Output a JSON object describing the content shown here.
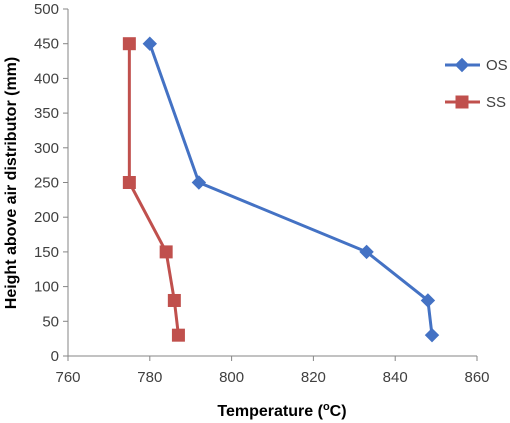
{
  "chart_data": {
    "type": "line",
    "title": "",
    "xlabel": "Temperature (",
    "xlabel_sup": "o",
    "xlabel_tail": "C)",
    "ylabel": "Height above air distributor (mm)",
    "xlim": [
      760,
      860
    ],
    "ylim": [
      0,
      500
    ],
    "x_ticks": [
      "760",
      "780",
      "800",
      "820",
      "840",
      "860"
    ],
    "y_ticks": [
      "0",
      "50",
      "100",
      "150",
      "200",
      "250",
      "300",
      "350",
      "400",
      "450",
      "500"
    ],
    "grid": false,
    "legend_position": "right",
    "series": [
      {
        "name": "OS",
        "color": "#4472C4",
        "marker": "diamond",
        "points": [
          {
            "x": 849,
            "y": 30
          },
          {
            "x": 848,
            "y": 80
          },
          {
            "x": 833,
            "y": 150
          },
          {
            "x": 792,
            "y": 250
          },
          {
            "x": 780,
            "y": 450
          }
        ]
      },
      {
        "name": "SS",
        "color": "#C0504D",
        "marker": "square",
        "points": [
          {
            "x": 787,
            "y": 30
          },
          {
            "x": 786,
            "y": 80
          },
          {
            "x": 784,
            "y": 150
          },
          {
            "x": 775,
            "y": 250
          },
          {
            "x": 775,
            "y": 450
          }
        ]
      }
    ]
  }
}
